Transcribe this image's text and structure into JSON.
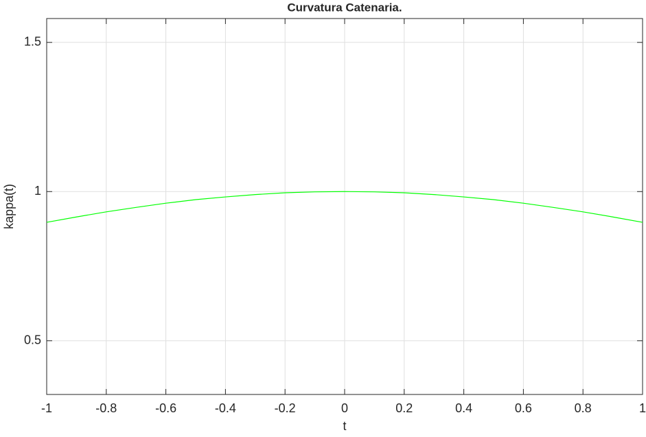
{
  "chart_data": {
    "type": "line",
    "title": "Curvatura Catenaria.",
    "x_label": "t",
    "y_label": "kappa(t)",
    "x": [
      -1,
      -0.9,
      -0.8,
      -0.7,
      -0.6,
      -0.5,
      -0.4,
      -0.3,
      -0.2,
      -0.1,
      0,
      0.1,
      0.2,
      0.3,
      0.4,
      0.5,
      0.6,
      0.7,
      0.8,
      0.9,
      1
    ],
    "series": [
      {
        "name": "kappa(t)",
        "color": "#00ff00",
        "values": [
          0.897,
          0.915,
          0.932,
          0.947,
          0.961,
          0.973,
          0.982,
          0.99,
          0.996,
          0.999,
          1,
          0.999,
          0.996,
          0.99,
          0.982,
          0.973,
          0.961,
          0.947,
          0.932,
          0.915,
          0.897
        ]
      }
    ],
    "xlim": [
      -1,
      1
    ],
    "xticks": [
      -1,
      -0.8,
      -0.6,
      -0.4,
      -0.2,
      0,
      0.2,
      0.4,
      0.6,
      0.8,
      1
    ],
    "ylim": [
      0.32,
      1.58
    ],
    "yticks": [
      0.5,
      1,
      1.5
    ],
    "grid": true
  }
}
